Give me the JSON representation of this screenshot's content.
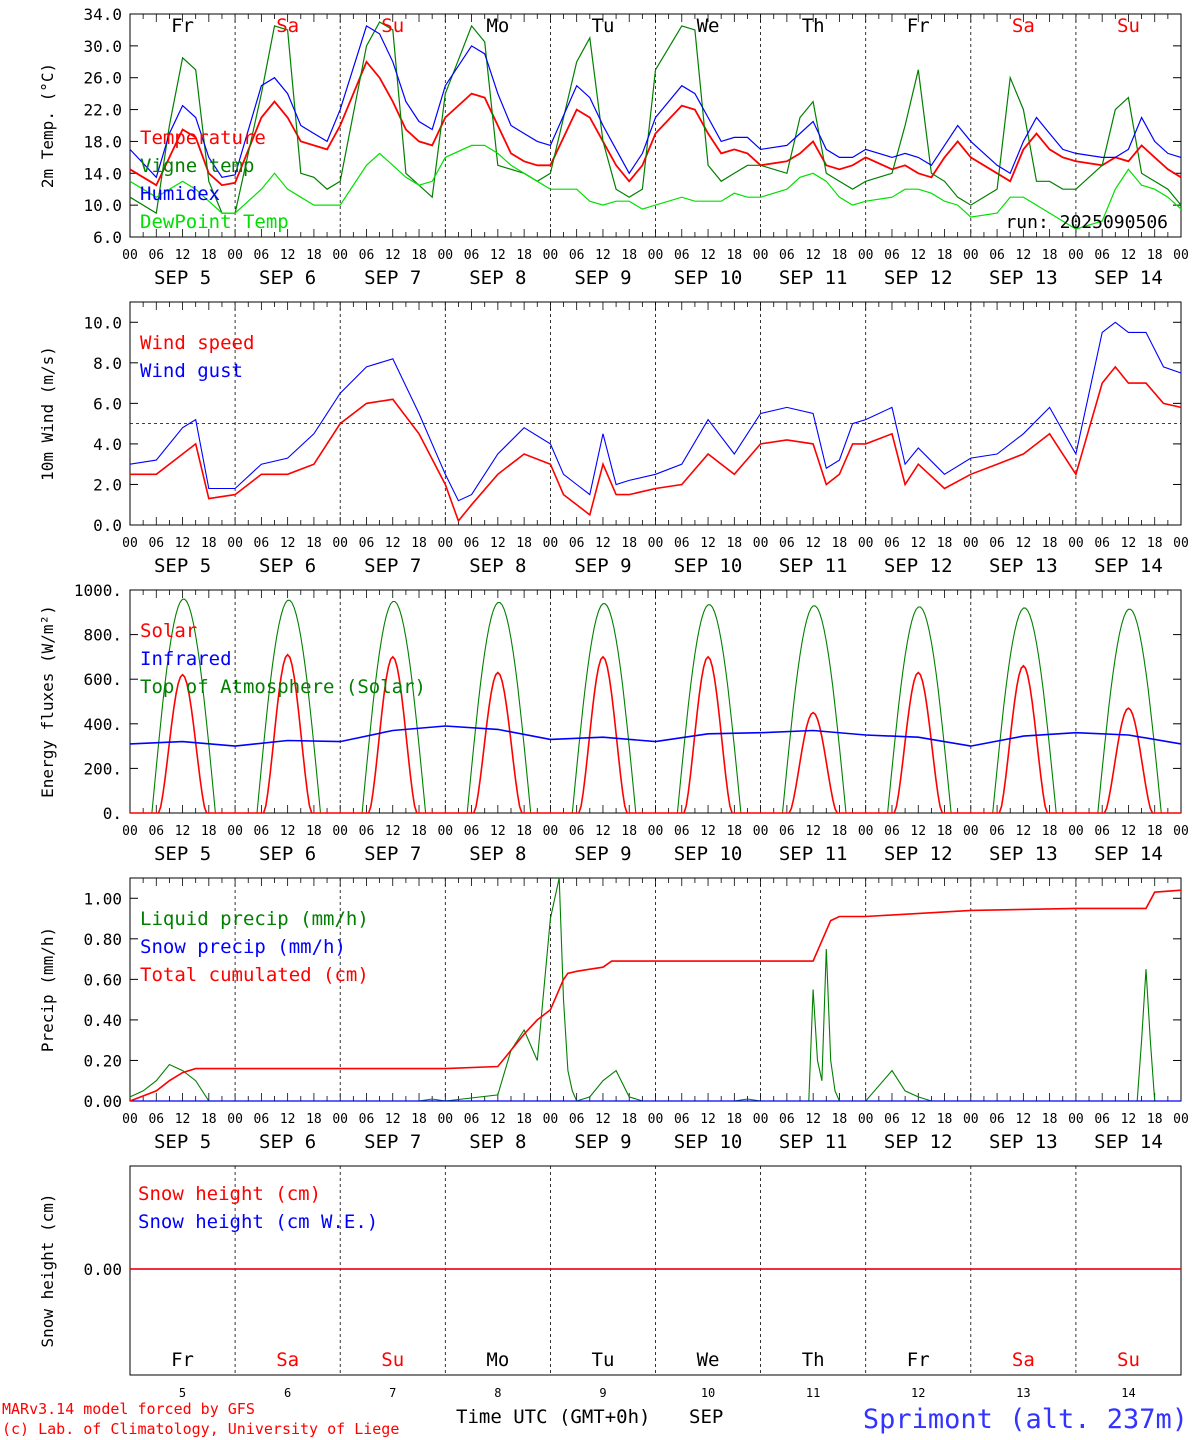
{
  "colors": {
    "red": "#ff0000",
    "green": "#008000",
    "blue": "#0000ff",
    "lime": "#00e000",
    "black": "#000000"
  },
  "days": {
    "weekday": [
      "Fr",
      "Sa",
      "Su",
      "Mo",
      "Tu",
      "We",
      "Th",
      "Fr",
      "Sa",
      "Su"
    ],
    "weekday_colors": [
      "#000000",
      "#ff0000",
      "#ff0000",
      "#000000",
      "#000000",
      "#000000",
      "#000000",
      "#000000",
      "#ff0000",
      "#ff0000"
    ],
    "date_labels": [
      "SEP  5",
      "SEP  6",
      "SEP  7",
      "SEP  8",
      "SEP  9",
      "SEP 10",
      "SEP 11",
      "SEP 12",
      "SEP 13",
      "SEP 14"
    ],
    "day_numbers": [
      "5",
      "6",
      "7",
      "8",
      "9",
      "10",
      "11",
      "12",
      "13",
      "14"
    ],
    "hour_labels": [
      "00",
      "06",
      "12",
      "18"
    ],
    "final_hour_label": "00"
  },
  "footer": {
    "model": "MARv3.14 model forced by GFS",
    "credit": "(c) Lab. of Climatology, University of Liege",
    "time_axis": "Time UTC (GMT+0h)",
    "month": "SEP",
    "station": "Sprimont (alt. 237m)"
  },
  "chart_data": [
    {
      "id": "temperature",
      "type": "line",
      "ylabel": "2m Temp. (°C)",
      "ylim": [
        6,
        34
      ],
      "yticks": [
        "6.0",
        "10.0",
        "14.0",
        "18.0",
        "22.0",
        "26.0",
        "30.0",
        "34.0"
      ],
      "yticks_values": [
        6,
        10,
        14,
        18,
        22,
        26,
        30,
        34
      ],
      "annotation": "run: 2025090506",
      "legend_position": "left",
      "x_hours": [
        0,
        6,
        9,
        12,
        15,
        18,
        21,
        24,
        30,
        33,
        36,
        39,
        42,
        45,
        48,
        54,
        57,
        60,
        63,
        66,
        69,
        72,
        78,
        81,
        84,
        87,
        90,
        93,
        96,
        102,
        105,
        108,
        111,
        114,
        117,
        120,
        126,
        129,
        132,
        135,
        138,
        141,
        144,
        150,
        153,
        156,
        159,
        162,
        165,
        168,
        174,
        177,
        180,
        183,
        186,
        189,
        192,
        198,
        201,
        204,
        207,
        210,
        213,
        216,
        222,
        225,
        228,
        231,
        234,
        237,
        240
      ],
      "series": [
        {
          "name": "Temperature",
          "color": "#ff0000",
          "values": [
            14.5,
            12.5,
            16,
            19.5,
            18.5,
            14,
            12.5,
            12.8,
            21,
            23,
            21,
            18,
            17.5,
            17,
            20,
            28,
            26,
            23,
            19.5,
            18,
            17.5,
            21,
            24,
            23.5,
            20,
            16.5,
            15.5,
            15,
            15,
            22,
            21,
            18,
            15,
            13,
            15,
            19,
            22.5,
            22,
            19,
            16.5,
            17,
            16.5,
            15,
            15.5,
            16.5,
            18,
            15,
            14.5,
            15,
            16,
            14.5,
            15,
            14,
            13.5,
            16,
            18,
            16,
            14,
            13,
            17,
            19,
            17,
            16,
            15.5,
            15,
            16,
            15.5,
            17.5,
            16,
            14.5,
            13.5
          ]
        },
        {
          "name": "Vigne temp",
          "color": "#008000",
          "values": [
            11,
            9,
            20,
            28.5,
            27,
            13,
            9,
            9,
            24,
            32.5,
            32,
            14,
            13.5,
            12,
            13,
            30,
            33,
            32,
            14,
            12.5,
            11,
            24,
            32.5,
            30.5,
            15,
            14.5,
            14,
            13,
            14,
            28,
            31,
            18,
            12,
            11,
            12,
            27,
            32.5,
            32,
            15,
            13,
            14,
            15,
            15,
            14,
            21,
            23,
            14,
            13,
            12,
            13,
            14,
            20,
            27,
            14,
            13,
            11,
            10,
            12,
            26,
            22,
            13,
            13,
            12,
            12,
            15,
            22,
            23.5,
            14,
            13,
            12,
            10
          ]
        },
        {
          "name": "Humidex",
          "color": "#0000ff",
          "values": [
            17,
            13.5,
            19,
            22.5,
            21,
            16,
            13.5,
            13.8,
            25,
            26,
            24,
            20,
            19,
            18,
            22,
            32.5,
            31.5,
            28,
            23,
            20.5,
            19.5,
            25,
            30,
            29,
            24,
            20,
            19,
            18,
            17.5,
            25,
            23.5,
            20,
            17,
            14,
            16.5,
            21,
            25,
            24,
            21,
            18,
            18.5,
            18.5,
            17,
            17.5,
            19,
            20.5,
            17,
            16,
            16,
            17,
            16,
            16.5,
            16,
            15,
            17.5,
            20,
            18,
            15,
            14,
            18,
            21,
            19,
            17,
            16.5,
            16,
            16,
            17,
            21,
            18,
            16.5,
            16
          ]
        },
        {
          "name": "DewPoint Temp",
          "color": "#00e000",
          "values": [
            13,
            11,
            12,
            13,
            12,
            10.5,
            9,
            9,
            12,
            14,
            12,
            11,
            10,
            10,
            10,
            15,
            16.5,
            15,
            13.5,
            12.5,
            13,
            16,
            17.5,
            17.5,
            16.5,
            15,
            14,
            13,
            12,
            12,
            10.5,
            10,
            10.5,
            10.5,
            9.5,
            10,
            11,
            10.5,
            10.5,
            10.5,
            11.5,
            11,
            11,
            12,
            13.5,
            14,
            13,
            11,
            10,
            10.5,
            11,
            12,
            12,
            11.5,
            10.5,
            10,
            8.5,
            9,
            11,
            11,
            10,
            9,
            8,
            7,
            8,
            12,
            14.5,
            12.5,
            12,
            11,
            9.5
          ]
        }
      ]
    },
    {
      "id": "wind",
      "type": "line",
      "ylabel": "10m Wind (m/s)",
      "ylim": [
        0,
        11
      ],
      "yticks": [
        "0.0",
        "2.0",
        "4.0",
        "6.0",
        "8.0",
        "10.0"
      ],
      "yticks_values": [
        0,
        2,
        4,
        6,
        8,
        10
      ],
      "reference_line": 5,
      "legend_position": "left",
      "x_hours": [
        0,
        6,
        12,
        15,
        18,
        24,
        30,
        36,
        42,
        48,
        54,
        60,
        66,
        72,
        75,
        78,
        84,
        90,
        96,
        99,
        102,
        105,
        108,
        111,
        114,
        120,
        126,
        132,
        138,
        144,
        150,
        156,
        159,
        162,
        165,
        168,
        174,
        177,
        180,
        186,
        192,
        198,
        204,
        210,
        216,
        222,
        225,
        228,
        232,
        236,
        240
      ],
      "series": [
        {
          "name": "Wind speed",
          "color": "#ff0000",
          "values": [
            2.5,
            2.5,
            3.5,
            4,
            1.3,
            1.5,
            2.5,
            2.5,
            3,
            5,
            6,
            6.2,
            4.5,
            2,
            0.2,
            1,
            2.5,
            3.5,
            3,
            1.5,
            1,
            0.5,
            3,
            1.5,
            1.5,
            1.8,
            2,
            3.5,
            2.5,
            4,
            4.2,
            4,
            2,
            2.5,
            4,
            4,
            4.5,
            2,
            3,
            1.8,
            2.5,
            3,
            3.5,
            4.5,
            2.5,
            7,
            7.8,
            7,
            7,
            6,
            5.8
          ]
        },
        {
          "name": "Wind gust",
          "color": "#0000ff",
          "values": [
            3,
            3.2,
            4.8,
            5.2,
            1.8,
            1.8,
            3,
            3.3,
            4.5,
            6.5,
            7.8,
            8.2,
            5.5,
            2.5,
            1.2,
            1.5,
            3.5,
            4.8,
            4,
            2.5,
            2,
            1.5,
            4.5,
            2,
            2.2,
            2.5,
            3,
            5.2,
            3.5,
            5.5,
            5.8,
            5.5,
            2.8,
            3.2,
            5,
            5.2,
            5.8,
            3,
            3.8,
            2.5,
            3.3,
            3.5,
            4.5,
            5.8,
            3.5,
            9.5,
            10,
            9.5,
            9.5,
            7.8,
            7.5
          ]
        }
      ]
    },
    {
      "id": "energy",
      "type": "line",
      "ylabel": "Energy fluxes (W/m²)",
      "ylim": [
        0,
        1000
      ],
      "yticks": [
        "0.",
        "200.",
        "400.",
        "600.",
        "800.",
        "1000."
      ],
      "yticks_values": [
        0,
        200,
        400,
        600,
        800,
        1000
      ],
      "legend_position": "left",
      "toa_peaks": [
        960,
        955,
        950,
        945,
        940,
        935,
        930,
        925,
        920,
        915
      ],
      "solar_peaks": [
        620,
        710,
        700,
        630,
        700,
        700,
        450,
        630,
        660,
        470
      ],
      "infrared_daily": [
        310,
        300,
        320,
        390,
        330,
        320,
        360,
        350,
        300,
        360,
        310
      ],
      "series": [
        {
          "name": "Solar",
          "color": "#ff0000"
        },
        {
          "name": "Infrared",
          "color": "#0000ff"
        },
        {
          "name": "Top of Atmosphere (Solar)",
          "color": "#008000"
        }
      ]
    },
    {
      "id": "precip",
      "type": "line",
      "ylabel": "Precip (mm/h)",
      "ylim": [
        0,
        1.1
      ],
      "yticks": [
        "0.00",
        "0.20",
        "0.40",
        "0.60",
        "0.80",
        "1.00"
      ],
      "yticks_values": [
        0,
        0.2,
        0.4,
        0.6,
        0.8,
        1.0
      ],
      "legend_position": "left",
      "x_hours": [
        0,
        6,
        9,
        12,
        15,
        18,
        24,
        60,
        72,
        84,
        87,
        90,
        93,
        96,
        99,
        100,
        102,
        105,
        108,
        110,
        120,
        126,
        144,
        156,
        158,
        160,
        162,
        168,
        192,
        216,
        232,
        234,
        240
      ],
      "series": [
        {
          "name": "Liquid precip (mm/h)",
          "color": "#008000"
        },
        {
          "name": "Snow precip (mm/h)",
          "color": "#0000ff"
        },
        {
          "name": "Total cumulated (cm)",
          "color": "#ff0000",
          "values": [
            0,
            0.05,
            0.1,
            0.14,
            0.16,
            0.16,
            0.16,
            0.16,
            0.16,
            0.17,
            0.25,
            0.33,
            0.4,
            0.45,
            0.6,
            0.63,
            0.64,
            0.65,
            0.66,
            0.69,
            0.69,
            0.69,
            0.69,
            0.69,
            0.79,
            0.89,
            0.91,
            0.91,
            0.94,
            0.95,
            0.95,
            1.03,
            1.04
          ]
        }
      ],
      "liquid_x_hours": [
        0,
        3,
        6,
        9,
        12,
        15,
        18,
        21,
        24,
        66,
        69,
        72,
        84,
        87,
        90,
        93,
        96,
        98,
        99,
        100,
        101,
        102,
        105,
        108,
        111,
        114,
        117,
        120,
        138,
        141,
        144,
        155,
        156,
        157,
        158,
        159,
        160,
        161,
        162,
        166,
        168,
        174,
        177,
        180,
        183,
        186,
        230,
        231,
        232,
        233,
        234,
        240
      ],
      "liquid_values": [
        0.02,
        0.05,
        0.1,
        0.18,
        0.15,
        0.1,
        0,
        0,
        0,
        0,
        0.01,
        0,
        0.03,
        0.25,
        0.35,
        0.2,
        0.9,
        1.1,
        0.5,
        0.15,
        0.05,
        0,
        0.02,
        0.1,
        0.15,
        0.02,
        0,
        0,
        0,
        0.01,
        0,
        0,
        0.55,
        0.2,
        0.1,
        0.75,
        0.2,
        0.05,
        0,
        0,
        0,
        0.15,
        0.05,
        0.02,
        0,
        0,
        0,
        0.3,
        0.65,
        0.3,
        0,
        0
      ]
    },
    {
      "id": "snow",
      "type": "line",
      "ylabel": "Snow height (cm)",
      "yticks": [
        "0.00"
      ],
      "legend_position": "left",
      "series": [
        {
          "name": "Snow height (cm)",
          "color": "#ff0000",
          "values": [
            0,
            0
          ]
        },
        {
          "name": "Snow height (cm W.E.)",
          "color": "#0000ff",
          "values": [
            0,
            0
          ]
        }
      ],
      "x_hours": [
        0,
        240
      ]
    }
  ]
}
